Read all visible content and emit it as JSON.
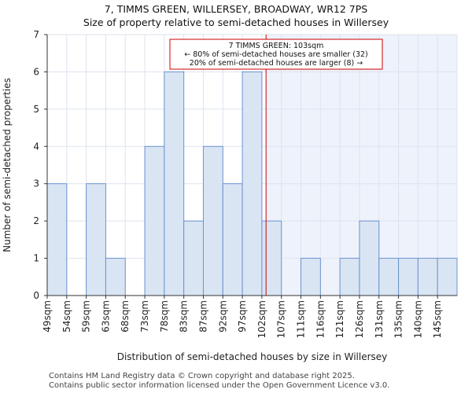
{
  "header": {
    "title": "7, TIMMS GREEN, WILLERSEY, BROADWAY, WR12 7PS",
    "subtitle": "Size of property relative to semi-detached houses in Willersey"
  },
  "chart_data": {
    "type": "bar",
    "categories": [
      "49sqm",
      "54sqm",
      "59sqm",
      "63sqm",
      "68sqm",
      "73sqm",
      "78sqm",
      "83sqm",
      "87sqm",
      "92sqm",
      "97sqm",
      "102sqm",
      "107sqm",
      "111sqm",
      "116sqm",
      "121sqm",
      "126sqm",
      "131sqm",
      "135sqm",
      "140sqm",
      "145sqm"
    ],
    "values": [
      3,
      0,
      3,
      1,
      0,
      4,
      6,
      2,
      4,
      3,
      6,
      2,
      0,
      1,
      0,
      1,
      2,
      1,
      1,
      1,
      1
    ],
    "xlabel": "Distribution of semi-detached houses by size in Willersey",
    "ylabel": "Number of semi-detached properties",
    "ylim": [
      0,
      7
    ],
    "yticks": [
      0,
      1,
      2,
      3,
      4,
      5,
      6,
      7
    ],
    "marker": {
      "value_sqm": 103,
      "label_lines": [
        "7 TIMMS GREEN: 103sqm",
        "← 80% of semi-detached houses are smaller (32)",
        "20% of semi-detached houses are larger (8) →"
      ]
    },
    "grid": true,
    "colors": {
      "bar_fill": "#dae5f4",
      "bar_stroke": "#6a93cf",
      "marker_line": "#cc0000",
      "annotation_border": "#cc0000",
      "highlight_region": "#eef2fb",
      "grid": "#dde3ee"
    }
  },
  "footer": {
    "line1": "Contains HM Land Registry data © Crown copyright and database right 2025.",
    "line2": "Contains public sector information licensed under the Open Government Licence v3.0."
  }
}
